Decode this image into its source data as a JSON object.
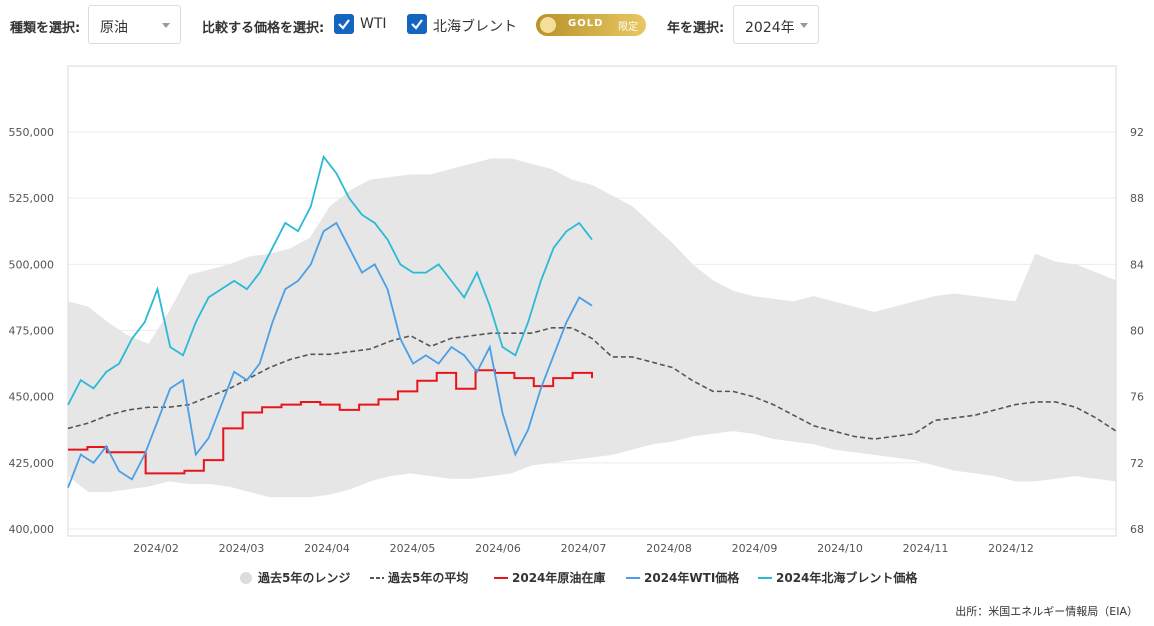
{
  "controls": {
    "type_label": "種類を選択:",
    "type_value": "原油",
    "compare_label": "比較する価格を選択:",
    "check_wti": "WTI",
    "check_brent": "北海ブレント",
    "gold_badge": "GOLD",
    "gold_badge_sub": "限定",
    "year_label": "年を選択:",
    "year_value": "2024年"
  },
  "source": "出所：米国エネルギー情報局（EIA）",
  "colors": {
    "range": "#e6e6e6",
    "avg": "#555555",
    "inventory": "#e8141a",
    "wti": "#4a9fe6",
    "brent": "#2bbad6"
  },
  "chart_data": {
    "type": "line",
    "x_ticks": [
      "2024/02",
      "2024/03",
      "2024/04",
      "2024/05",
      "2024/06",
      "2024/07",
      "2024/08",
      "2024/09",
      "2024/10",
      "2024/11",
      "2024/12"
    ],
    "x_range_weeks": [
      0,
      52
    ],
    "y_left": {
      "ticks": [
        "400,000",
        "425,000",
        "450,000",
        "475,000",
        "500,000",
        "525,000",
        "550,000"
      ],
      "min": 400000,
      "max": 550000
    },
    "y_right": {
      "ticks": [
        "68",
        "72",
        "76",
        "80",
        "84",
        "88",
        "92"
      ],
      "min": 68,
      "max": 92
    },
    "grid": true,
    "legend_position": "bottom",
    "legend": [
      "過去5年のレンジ",
      "過去5年の平均",
      "2024年原油在庫",
      "2024年WTI価格",
      "2024年北海ブレント価格"
    ],
    "series": [
      {
        "name": "過去5年のレンジ",
        "axis": "left",
        "kind": "band",
        "upper": [
          486000,
          484000,
          478000,
          473000,
          470000,
          482000,
          496000,
          498000,
          500000,
          503000,
          504000,
          506000,
          510000,
          522000,
          528000,
          532000,
          533000,
          534000,
          534000,
          536000,
          538000,
          540000,
          540000,
          538000,
          536000,
          532000,
          530000,
          526000,
          522000,
          515000,
          508000,
          500000,
          494000,
          490000,
          488000,
          487000,
          486000,
          488000,
          486000,
          484000,
          482000,
          484000,
          486000,
          488000,
          489000,
          488000,
          487000,
          486000,
          504000,
          501000,
          500000,
          497000,
          494000
        ],
        "lower": [
          420000,
          414000,
          414000,
          415000,
          416000,
          418000,
          417000,
          417000,
          416000,
          414000,
          412000,
          412000,
          412000,
          413000,
          415000,
          418000,
          420000,
          421000,
          420000,
          419000,
          419000,
          420000,
          421000,
          424000,
          425000,
          426000,
          427000,
          428000,
          430000,
          432000,
          433000,
          435000,
          436000,
          437000,
          436000,
          434000,
          433000,
          432000,
          430000,
          429000,
          428000,
          427000,
          426000,
          424000,
          422000,
          421000,
          420000,
          418000,
          418000,
          419000,
          420000,
          419000,
          418000
        ]
      },
      {
        "name": "過去5年の平均",
        "axis": "left",
        "kind": "dashed",
        "values": [
          438000,
          440000,
          443000,
          445000,
          446000,
          446000,
          447000,
          450000,
          453000,
          457000,
          461000,
          464000,
          466000,
          466000,
          467000,
          468000,
          471000,
          473000,
          469000,
          472000,
          473000,
          474000,
          474000,
          474000,
          476000,
          476000,
          472000,
          465000,
          465000,
          463000,
          461000,
          456000,
          452000,
          452000,
          450000,
          447000,
          443000,
          439000,
          437000,
          435000,
          434000,
          435000,
          436000,
          441000,
          442000,
          443000,
          445000,
          447000,
          448000,
          448000,
          446000,
          442000,
          437000
        ]
      },
      {
        "name": "2024年原油在庫",
        "axis": "left",
        "kind": "step",
        "weeks_count": 26,
        "values": [
          430000,
          431000,
          429000,
          429000,
          421000,
          421000,
          422000,
          426000,
          438000,
          444000,
          446000,
          447000,
          448000,
          447000,
          445000,
          447000,
          449000,
          452000,
          456000,
          459000,
          453000,
          460000,
          459000,
          457000,
          454000,
          457000,
          459000,
          457000
        ]
      },
      {
        "name": "2024年WTI価格",
        "axis": "right",
        "kind": "line",
        "x_end_week": 26,
        "values": [
          70.5,
          72.5,
          72.0,
          73.0,
          71.5,
          71.0,
          72.5,
          74.5,
          76.5,
          77.0,
          72.5,
          73.5,
          75.5,
          77.5,
          77.0,
          78.0,
          80.5,
          82.5,
          83.0,
          84.0,
          86.0,
          86.5,
          85.0,
          83.5,
          84.0,
          82.5,
          79.5,
          78.0,
          78.5,
          78.0,
          79.0,
          78.5,
          77.5,
          79.0,
          75.0,
          72.5,
          74.0,
          76.5,
          78.5,
          80.5,
          82.0,
          81.5
        ]
      },
      {
        "name": "2024年北海ブレント価格",
        "axis": "right",
        "kind": "line",
        "x_end_week": 26,
        "values": [
          75.5,
          77.0,
          76.5,
          77.5,
          78.0,
          79.5,
          80.5,
          82.5,
          79.0,
          78.5,
          80.5,
          82.0,
          82.5,
          83.0,
          82.5,
          83.5,
          85.0,
          86.5,
          86.0,
          87.5,
          90.5,
          89.5,
          88.0,
          87.0,
          86.5,
          85.5,
          84.0,
          83.5,
          83.5,
          84.0,
          83.0,
          82.0,
          83.5,
          81.5,
          79.0,
          78.5,
          80.5,
          83.0,
          85.0,
          86.0,
          86.5,
          85.5
        ]
      }
    ]
  }
}
